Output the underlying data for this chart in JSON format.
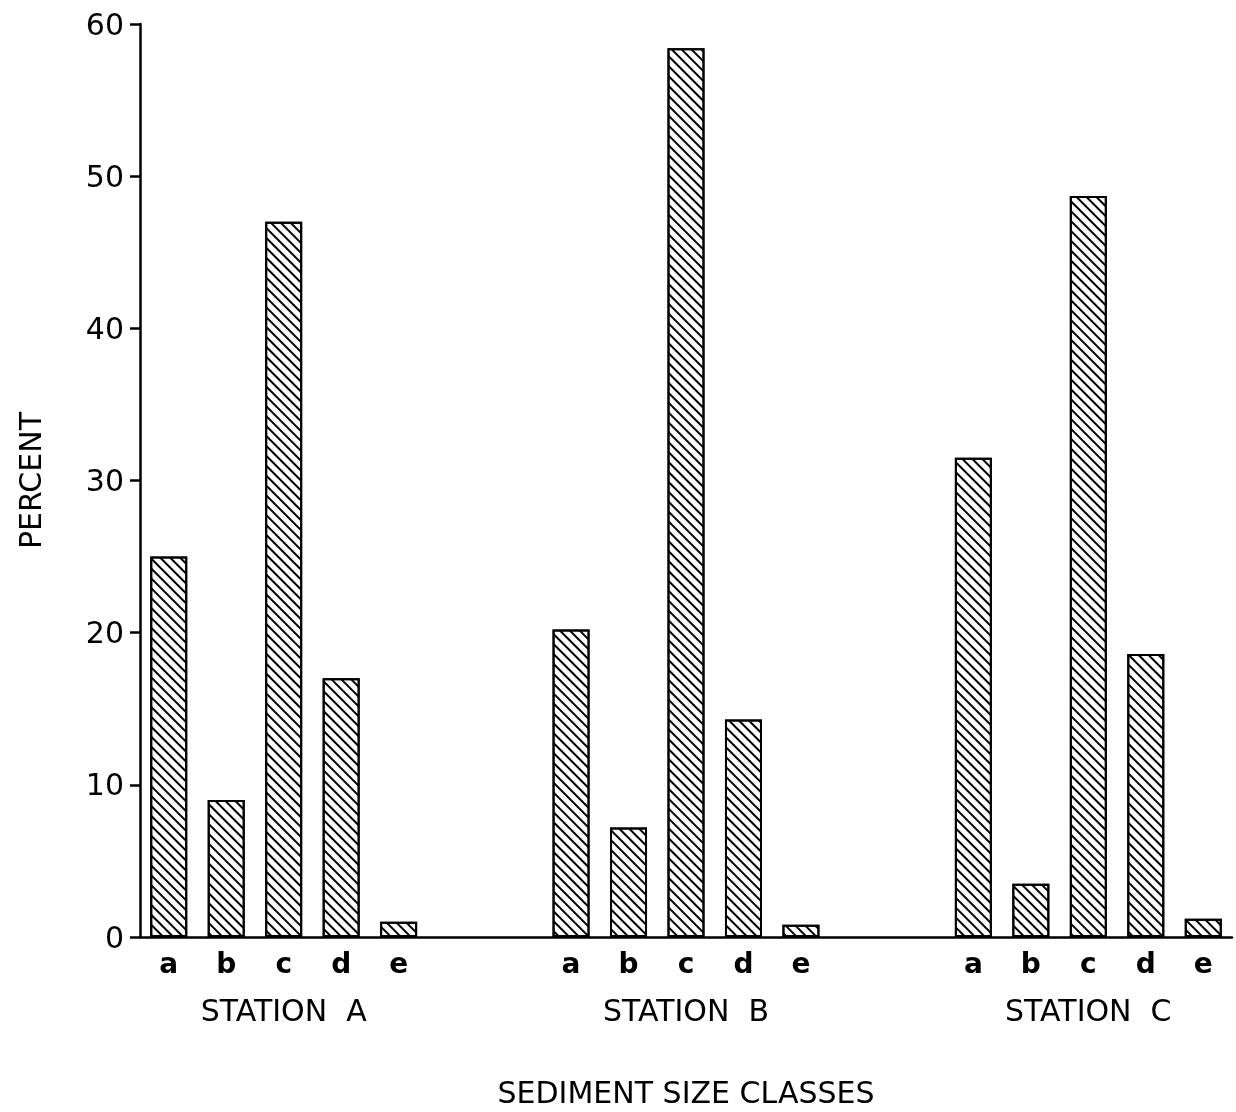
{
  "chart_data": {
    "type": "bar",
    "categories": [
      "a",
      "b",
      "c",
      "d",
      "e",
      null,
      null,
      "a",
      "b",
      "c",
      "d",
      "e",
      null,
      null,
      "a",
      "b",
      "c",
      "d",
      "e"
    ],
    "values": [
      25,
      9,
      47,
      17,
      1,
      null,
      null,
      20.2,
      7.2,
      58.4,
      14.3,
      0.8,
      null,
      null,
      31.5,
      3.5,
      48.7,
      18.6,
      1.2
    ],
    "color": "#000000",
    "xlabel": "SEDIMENT SIZE CLASSES",
    "ylabel": "PERCENT",
    "annotations": [
      "STATION  A",
      "STATION  B",
      "STATION  C"
    ],
    "ylim": [
      0,
      60
    ],
    "yticks": [
      0,
      10,
      20,
      30,
      40,
      50,
      60
    ]
  }
}
